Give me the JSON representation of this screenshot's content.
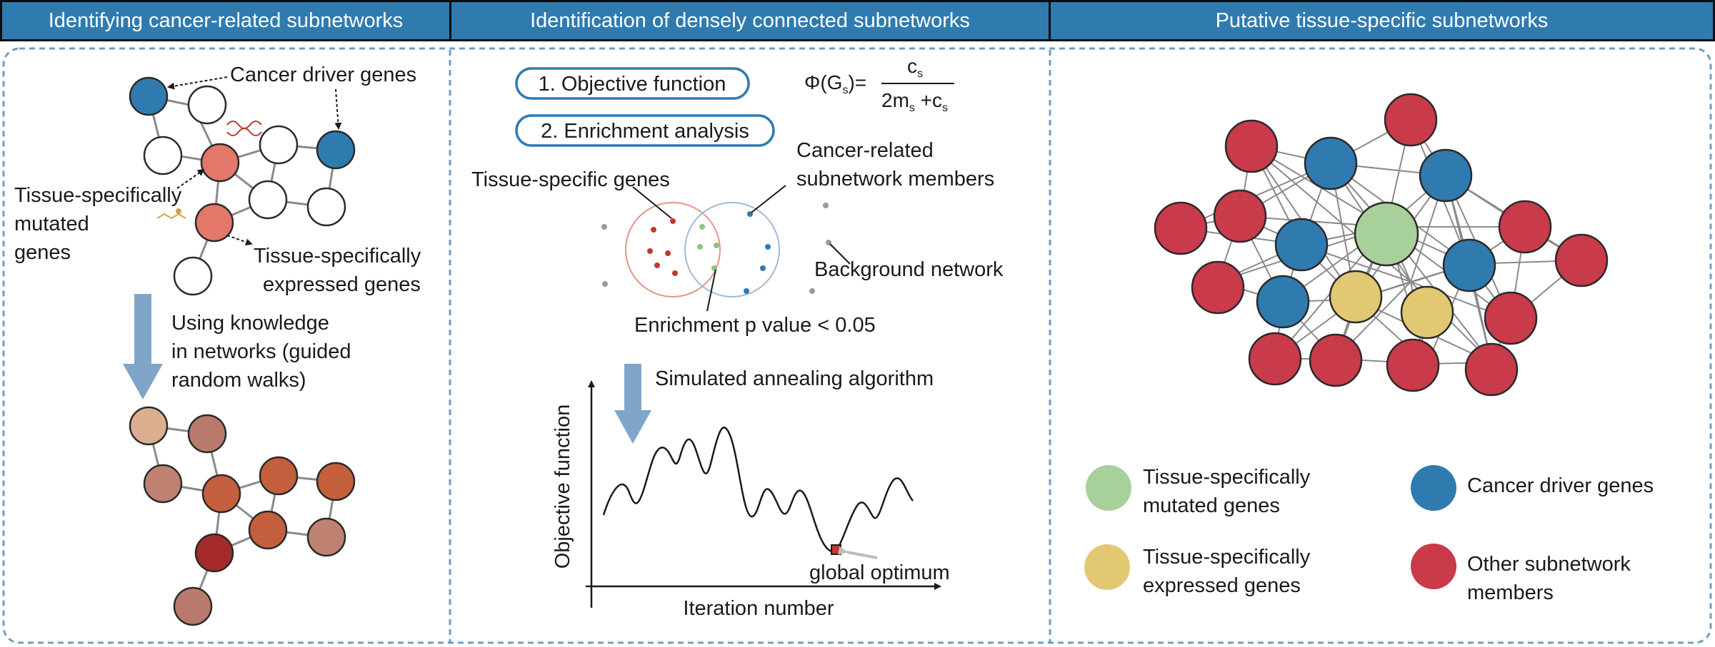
{
  "panels": {
    "left": {
      "title": "Identifying cancer-related subnetworks",
      "label_driver": "Cancer driver genes",
      "label_mutated": [
        "Tissue-specifically",
        "mutated",
        "genes"
      ],
      "label_expressed": [
        "Tissue-specifically",
        "expressed genes"
      ],
      "arrow_text": [
        "Using knowledge",
        "in networks (guided",
        "random walks)"
      ]
    },
    "middle": {
      "title": "Identification of  densely connected subnetworks",
      "step1": "1. Objective function",
      "step2": "2. Enrichment analysis",
      "formula": {
        "lhs": "Φ(G",
        "lhs_sub": "s",
        "lhs_end": ")=",
        "num": "c",
        "num_sub": "s",
        "den_a": "2m",
        "den_a_sub": "s",
        "den_b": " +c",
        "den_b_sub": "s"
      },
      "venn_left_label": "Tissue-specific genes",
      "venn_right_label": [
        "Cancer-related",
        "subnetwork members"
      ],
      "background_label": "Background network",
      "enrichment_label": "Enrichment p value < 0.05",
      "annealing_label": "Simulated annealing algorithm",
      "y_axis": "Objective function",
      "x_axis": "Iteration number",
      "optimum_label": "global optimum"
    },
    "right": {
      "title": "Putative tissue-specific subnetworks",
      "legend": [
        {
          "lines": [
            "Tissue-specifically",
            "mutated genes"
          ],
          "color": "#a7d09a"
        },
        {
          "lines": [
            "Tissue-specifically",
            "expressed genes"
          ],
          "color": "#e3c874"
        },
        {
          "lines": [
            "Cancer driver genes"
          ],
          "color": "#2f7bb0"
        },
        {
          "lines": [
            "Other subnetwork",
            "members"
          ],
          "color": "#c93a4a"
        }
      ]
    }
  },
  "colors": {
    "header_bg": "#2f7bb0",
    "driver_blue": "#2f7bb0",
    "other_red": "#c93a4a",
    "mutated_green": "#a7d09a",
    "expressed_yellow": "#e3c874",
    "salmon": "#e2776a",
    "arrow_blue": "#7fa6c8",
    "dashed_border": "#6f9ec4"
  }
}
